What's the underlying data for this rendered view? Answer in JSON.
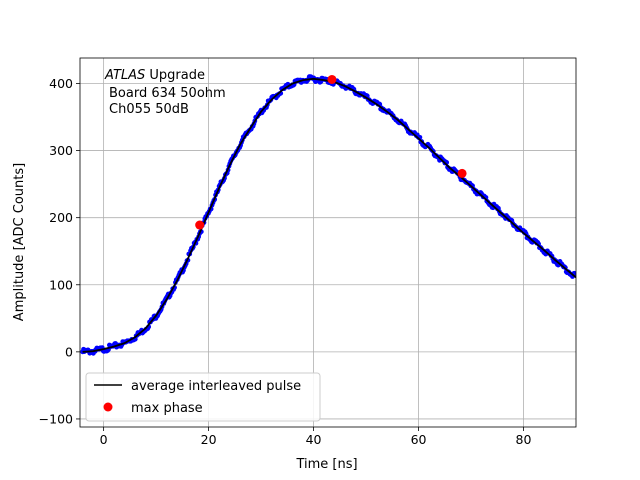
{
  "chart_data": {
    "type": "scatter",
    "xlabel": "Time [ns]",
    "ylabel": "Amplitude [ADC Counts]",
    "xlim": [
      -4.5,
      90
    ],
    "ylim": [
      -112,
      438
    ],
    "xticks": [
      0,
      20,
      40,
      60,
      80
    ],
    "yticks": [
      -100,
      0,
      100,
      200,
      300,
      400
    ],
    "grid": true,
    "legend_placement": "lower-left",
    "annotation": {
      "experiment": "ATLAS",
      "experiment_suffix": " Upgrade",
      "line2": "Board 634 50ohm",
      "line3": "Ch055 50dB"
    },
    "series": [
      {
        "name": "average interleaved pulse",
        "kind": "line",
        "color": "#000000",
        "x": [
          -4,
          -2,
          0,
          2,
          4,
          6,
          8,
          10,
          12,
          14,
          16,
          18,
          20,
          22,
          24,
          26,
          28,
          30,
          32,
          34,
          36,
          38,
          40,
          42,
          44,
          46,
          48,
          50,
          52,
          54,
          56,
          58,
          60,
          62,
          64,
          66,
          68,
          70,
          72,
          74,
          76,
          78,
          80,
          82,
          84,
          86,
          88,
          90
        ],
        "y": [
          0,
          1,
          4,
          8,
          13,
          22,
          35,
          54,
          78,
          106,
          138,
          172,
          208,
          244,
          278,
          309,
          334,
          358,
          376,
          390,
          400,
          405,
          407,
          405,
          402,
          396,
          388,
          379,
          369,
          358,
          346,
          332,
          318,
          304,
          289,
          274,
          261,
          247,
          233,
          219,
          205,
          191,
          177,
          164,
          151,
          137,
          124,
          111
        ]
      },
      {
        "name": "",
        "kind": "samples",
        "color": "#0000ff",
        "x": [
          -4,
          -2,
          0,
          2,
          4,
          6,
          8,
          10,
          12,
          14,
          16,
          18,
          20,
          22,
          24,
          26,
          28,
          30,
          32,
          34,
          36,
          38,
          40,
          42,
          44,
          46,
          48,
          50,
          52,
          54,
          56,
          58,
          60,
          62,
          64,
          66,
          68,
          70,
          72,
          74,
          76,
          78,
          80,
          82,
          84,
          86,
          88,
          90
        ],
        "y": [
          0,
          1,
          4,
          8,
          13,
          22,
          35,
          54,
          78,
          106,
          138,
          172,
          208,
          244,
          278,
          309,
          334,
          358,
          376,
          390,
          400,
          405,
          407,
          405,
          402,
          396,
          388,
          379,
          369,
          358,
          346,
          332,
          318,
          304,
          289,
          274,
          261,
          247,
          233,
          219,
          205,
          191,
          177,
          164,
          151,
          137,
          124,
          111
        ]
      },
      {
        "name": "max phase",
        "kind": "marker",
        "color": "#ff0000",
        "x": [
          18.3,
          43.5,
          68.3
        ],
        "y": [
          189,
          406,
          266
        ]
      }
    ]
  }
}
